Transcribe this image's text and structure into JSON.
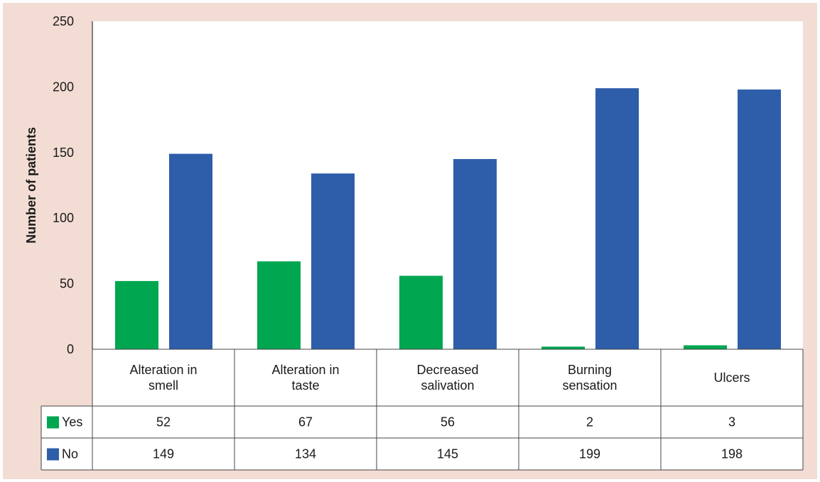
{
  "chart_data": {
    "type": "bar",
    "categories": [
      [
        "Alteration in",
        "smell"
      ],
      [
        "Alteration in",
        "taste"
      ],
      [
        "Decreased",
        "salivation"
      ],
      [
        "Burning",
        "sensation"
      ],
      [
        "Ulcers"
      ]
    ],
    "series": [
      {
        "name": "Yes",
        "color": "#00a650",
        "values": [
          52,
          67,
          56,
          2,
          3
        ]
      },
      {
        "name": "No",
        "color": "#2e5eaa",
        "values": [
          149,
          134,
          145,
          199,
          198
        ]
      }
    ],
    "ylabel": "Number of patients",
    "xlabel": "",
    "ylim": [
      0,
      250
    ],
    "yticks": [
      "0",
      "50",
      "100",
      "150",
      "200",
      "250"
    ],
    "grid": false,
    "legend": "data-table-rows"
  }
}
